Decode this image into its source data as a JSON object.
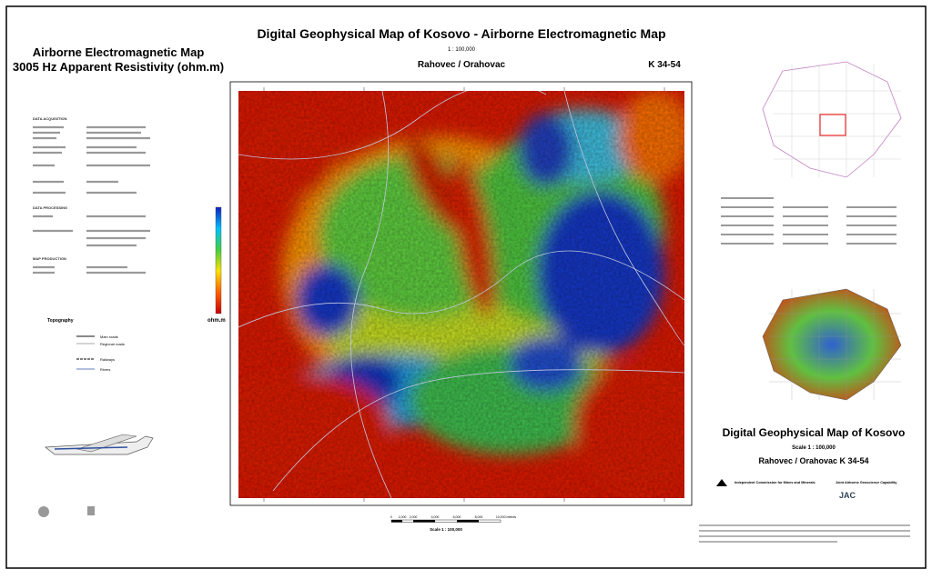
{
  "header": {
    "title": "Digital Geophysical Map of Kosovo - Airborne Electromagnetic Map",
    "scale": "1 : 100,000",
    "sheet_name": "Rahovec / Orahovac",
    "sheet_code": "K 34-54"
  },
  "left_panel": {
    "title_line1": "Airborne Electromagnetic Map",
    "title_line2": "3005 Hz Apparent Resistivity (ohm.m)",
    "sections": [
      "DATA ACQUISITION",
      "DATA PROCESSING",
      "MAP PRODUCTION"
    ],
    "topography_title": "Topography",
    "topography_items": [
      "Main roads",
      "Regional roads",
      "Railways",
      "Rivers"
    ]
  },
  "colorbar": {
    "unit": "ohm.m"
  },
  "scale_bar": {
    "labels": [
      "0",
      "1,000",
      "2,000",
      "4,000",
      "6,000",
      "8,000",
      "10,000 metres"
    ],
    "caption": "Scale 1 : 100,000"
  },
  "right_panel": {
    "title": "Digital Geophysical Map of Kosovo",
    "scale": "Scale 1 : 100,000",
    "sheet": "Rahovec / Orahovac K 34-54",
    "icmm": "Independent Commission for Mines and Minerals",
    "jac": "Joint Airborne Geoscience Capability",
    "jac_logo": "JAC"
  }
}
